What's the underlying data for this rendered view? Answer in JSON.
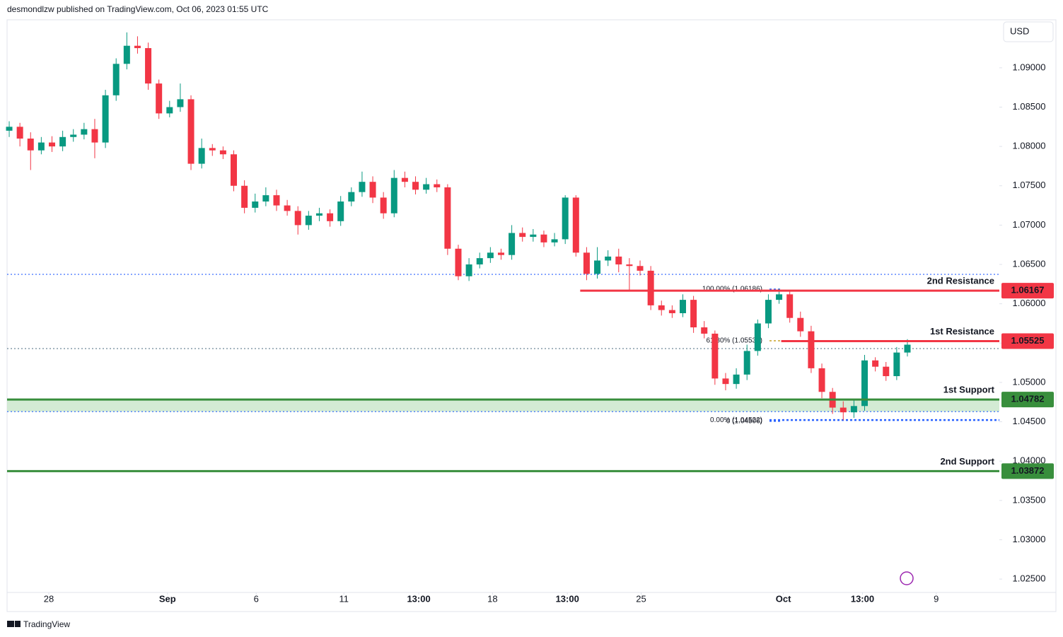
{
  "chart_data": {
    "type": "candlestick",
    "header": "desmondlzw published on TradingView.com, Oct 06, 2023 01:55 UTC",
    "currency": "USD",
    "footer": "TradingView",
    "up_color": "#089981",
    "down_color": "#f23645",
    "open": [
      1.082,
      1.0825,
      1.081,
      1.0795,
      1.0805,
      1.08,
      1.0812,
      1.0815,
      1.0822,
      1.0805,
      1.0865,
      1.0905,
      1.0928,
      1.0925,
      1.088,
      1.0842,
      1.085,
      1.086,
      1.0778,
      1.0798,
      1.0795,
      1.079,
      1.075,
      1.0722,
      1.073,
      1.0738,
      1.0725,
      1.0718,
      1.07,
      1.0712,
      1.0715,
      1.0705,
      1.073,
      1.0742,
      1.0755,
      1.0735,
      1.0715,
      1.076,
      1.0755,
      1.0745,
      1.0752,
      1.0748,
      1.067,
      1.0635,
      1.065,
      1.0658,
      1.0665,
      1.0662,
      1.069,
      1.0685,
      1.0688,
      1.0678,
      1.0682,
      1.0735,
      1.0665,
      1.0638,
      1.0655,
      1.066,
      1.065,
      1.0648,
      1.0642,
      1.0598,
      1.0592,
      1.0588,
      1.0605,
      1.057,
      1.0562,
      1.0505,
      1.0498,
      1.051,
      1.054,
      1.0575,
      1.0605,
      1.0612,
      1.0582,
      1.0565,
      1.0518,
      1.0488,
      1.0468,
      1.0462,
      1.047,
      1.0528,
      1.052,
      1.0508,
      1.0538
    ],
    "high": [
      1.0832,
      1.083,
      1.0818,
      1.0812,
      1.0813,
      1.082,
      1.0822,
      1.083,
      1.0835,
      1.0872,
      1.0912,
      1.0945,
      1.094,
      1.0932,
      1.0885,
      1.0858,
      1.088,
      1.0865,
      1.081,
      1.0803,
      1.08,
      1.0795,
      1.0757,
      1.074,
      1.0748,
      1.0745,
      1.0732,
      1.0724,
      1.0718,
      1.0722,
      1.072,
      1.0737,
      1.0748,
      1.0768,
      1.0762,
      1.0742,
      1.077,
      1.0768,
      1.0762,
      1.076,
      1.0758,
      1.0752,
      1.0675,
      1.0658,
      1.0665,
      1.0672,
      1.067,
      1.07,
      1.0697,
      1.0695,
      1.0693,
      1.069,
      1.0738,
      1.0738,
      1.0672,
      1.0672,
      1.0668,
      1.067,
      1.0658,
      1.0655,
      1.0648,
      1.0604,
      1.0598,
      1.0612,
      1.061,
      1.0578,
      1.0566,
      1.0512,
      1.0518,
      1.0548,
      1.058,
      1.0612,
      1.0619,
      1.0616,
      1.059,
      1.0572,
      1.0524,
      1.0493,
      1.0476,
      1.0478,
      1.0535,
      1.0532,
      1.0526,
      1.0545,
      1.0555
    ],
    "low": [
      1.0812,
      1.08,
      1.077,
      1.079,
      1.0793,
      1.0794,
      1.0806,
      1.0809,
      1.0785,
      1.0798,
      1.0858,
      1.0898,
      1.0918,
      1.0872,
      1.0835,
      1.0837,
      1.0844,
      1.077,
      1.0772,
      1.0788,
      1.0784,
      1.0743,
      1.0715,
      1.0716,
      1.0724,
      1.0718,
      1.0712,
      1.0688,
      1.0694,
      1.0705,
      1.0698,
      1.0699,
      1.0724,
      1.0736,
      1.0728,
      1.0708,
      1.071,
      1.0748,
      1.0739,
      1.074,
      1.0742,
      1.0662,
      1.063,
      1.0629,
      1.0645,
      1.0652,
      1.0656,
      1.0656,
      1.0679,
      1.0679,
      1.0672,
      1.0673,
      1.0676,
      1.066,
      1.063,
      1.0632,
      1.0648,
      1.064,
      1.0617,
      1.0636,
      1.0592,
      1.0585,
      1.0582,
      1.0583,
      1.0563,
      1.0556,
      1.0497,
      1.049,
      1.0492,
      1.0503,
      1.0534,
      1.0569,
      1.06,
      1.0576,
      1.0558,
      1.0512,
      1.048,
      1.046,
      1.0452,
      1.0455,
      1.0464,
      1.0514,
      1.0502,
      1.0503,
      1.0533
    ],
    "close": [
      1.0825,
      1.081,
      1.0795,
      1.0805,
      1.08,
      1.0812,
      1.0815,
      1.0822,
      1.0805,
      1.0865,
      1.0905,
      1.0928,
      1.0925,
      1.088,
      1.0842,
      1.085,
      1.086,
      1.0778,
      1.0798,
      1.0795,
      1.079,
      1.075,
      1.0722,
      1.073,
      1.0738,
      1.0725,
      1.0718,
      1.07,
      1.0712,
      1.0715,
      1.0705,
      1.073,
      1.0742,
      1.0755,
      1.0735,
      1.0715,
      1.076,
      1.0755,
      1.0745,
      1.0752,
      1.0748,
      1.067,
      1.0635,
      1.065,
      1.0658,
      1.0665,
      1.0662,
      1.069,
      1.0685,
      1.0688,
      1.0678,
      1.0682,
      1.0735,
      1.0665,
      1.0638,
      1.0655,
      1.066,
      1.065,
      1.0648,
      1.0642,
      1.0598,
      1.0592,
      1.0588,
      1.0605,
      1.057,
      1.0562,
      1.0505,
      1.0498,
      1.051,
      1.054,
      1.0575,
      1.0605,
      1.0612,
      1.0582,
      1.0565,
      1.0518,
      1.0488,
      1.0468,
      1.0462,
      1.047,
      1.0528,
      1.052,
      1.0508,
      1.0538,
      1.0548
    ],
    "xlim": [
      -0.2,
      92.6
    ],
    "xticks": [
      {
        "value": 3.7,
        "label": "28"
      },
      {
        "value": 14.8,
        "label": "Sep"
      },
      {
        "value": 23.1,
        "label": "6"
      },
      {
        "value": 31.3,
        "label": "11"
      },
      {
        "value": 38.3,
        "label": "13:00"
      },
      {
        "value": 45.2,
        "label": "18"
      },
      {
        "value": 52.2,
        "label": "13:00"
      },
      {
        "value": 59.1,
        "label": "25"
      },
      {
        "value": 72.4,
        "label": "Oct"
      },
      {
        "value": 79.8,
        "label": "13:00"
      },
      {
        "value": 86.7,
        "label": "9"
      }
    ],
    "ylim": [
      1.0233,
      1.0961
    ],
    "yticks": [
      {
        "value": 1.09,
        "label": "1.09000"
      },
      {
        "value": 1.085,
        "label": "1.08500"
      },
      {
        "value": 1.08,
        "label": "1.08000"
      },
      {
        "value": 1.075,
        "label": "1.07500"
      },
      {
        "value": 1.07,
        "label": "1.07000"
      },
      {
        "value": 1.065,
        "label": "1.06500"
      },
      {
        "value": 1.06,
        "label": "1.06000"
      },
      {
        "value": 1.055,
        "label": "1.05500"
      },
      {
        "value": 1.05,
        "label": "1.05000"
      },
      {
        "value": 1.045,
        "label": "1.04500"
      },
      {
        "value": 1.04,
        "label": "1.04000"
      },
      {
        "value": 1.035,
        "label": "1.03500"
      },
      {
        "value": 1.03,
        "label": "1.03000"
      },
      {
        "value": 1.025,
        "label": "1.02500"
      }
    ],
    "dotted_lines": [
      {
        "value": 1.06374,
        "color": "#2962ff"
      },
      {
        "value": 1.04629,
        "color": "#2962ff"
      },
      {
        "value": 1.0543,
        "color": "#5d7a8c"
      }
    ],
    "support_zone": {
      "from": 1.04629,
      "to": 1.04782,
      "color": "#c8e6c9"
    },
    "levels": [
      {
        "name": "2nd Resistance",
        "value": 1.06167,
        "color": "#f23645",
        "x_start": 53.4
      },
      {
        "name": "1st Resistance",
        "value": 1.05525,
        "color": "#f23645",
        "x_start": 72.2
      },
      {
        "name": "1st Support",
        "value": 1.04782,
        "color": "#388e3c"
      },
      {
        "name": "2nd Support",
        "value": 1.03872,
        "color": "#388e3c"
      }
    ],
    "fib_levels": [
      {
        "label": "100.00% (1.06186)",
        "value": 1.06186,
        "color": "#2962ff"
      },
      {
        "label": "61.80% (1.05530)",
        "value": 1.0553,
        "color": "#c9a227"
      },
      {
        "label": "0 (1.04506)",
        "value": 1.04506,
        "color": "#2962ff"
      },
      {
        "label": "0.00% (1.04522)",
        "value": 1.04522,
        "color": "#2962ff"
      }
    ]
  }
}
